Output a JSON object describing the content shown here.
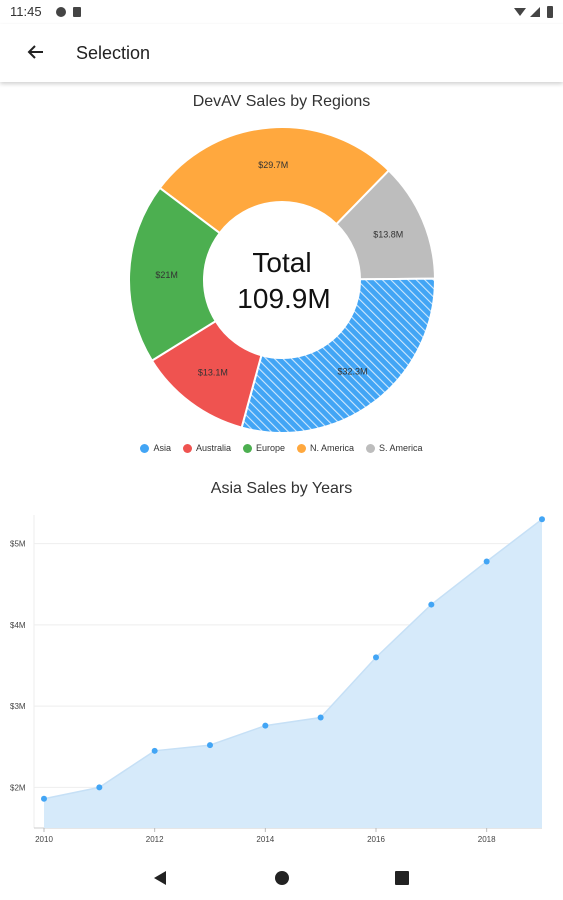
{
  "status_bar": {
    "time": "11:45"
  },
  "app_bar": {
    "title": "Selection",
    "back_icon": "arrow-back-icon"
  },
  "donut": {
    "title": "DevAV Sales by Regions",
    "center_label": "Total",
    "center_value": "109.9M",
    "colors": {
      "Asia": "#42a5f5",
      "Australia": "#ef5350",
      "Europe": "#4caf50",
      "N. America": "#ffa83e",
      "S. America": "#bdbdbd"
    }
  },
  "area_chart": {
    "title": "Asia Sales by Years",
    "fill_color": "#d6eafa",
    "line_color": "#42a5f5"
  },
  "chart_data": [
    {
      "type": "pie",
      "title": "DevAV Sales by Regions",
      "categories": [
        "N. America",
        "S. America",
        "Asia",
        "Australia",
        "Europe"
      ],
      "values": [
        29.7,
        13.8,
        32.3,
        13.1,
        21
      ],
      "labels": [
        "$29.7M",
        "$13.8M",
        "$32.3M",
        "$13.1M",
        "$21M"
      ],
      "legend": [
        "Asia",
        "Australia",
        "Europe",
        "N. America",
        "S. America"
      ],
      "legend_position": "bottom",
      "selected": "Asia"
    },
    {
      "type": "area",
      "title": "Asia Sales by Years",
      "x": [
        2010,
        2011,
        2012,
        2013,
        2014,
        2015,
        2016,
        2017,
        2018,
        2019
      ],
      "values": [
        1.86,
        2.0,
        2.45,
        2.52,
        2.76,
        2.86,
        3.6,
        4.25,
        4.78,
        5.3
      ],
      "xticks": [
        "2010",
        "2012",
        "2014",
        "2016",
        "2018"
      ],
      "yticks": [
        2,
        3,
        4,
        5
      ],
      "ytick_labels": [
        "$2M",
        "$3M",
        "$4M",
        "$5M"
      ],
      "ylim": [
        1.5,
        5.5
      ],
      "xlim": [
        2010,
        2019
      ],
      "grid": true
    }
  ]
}
